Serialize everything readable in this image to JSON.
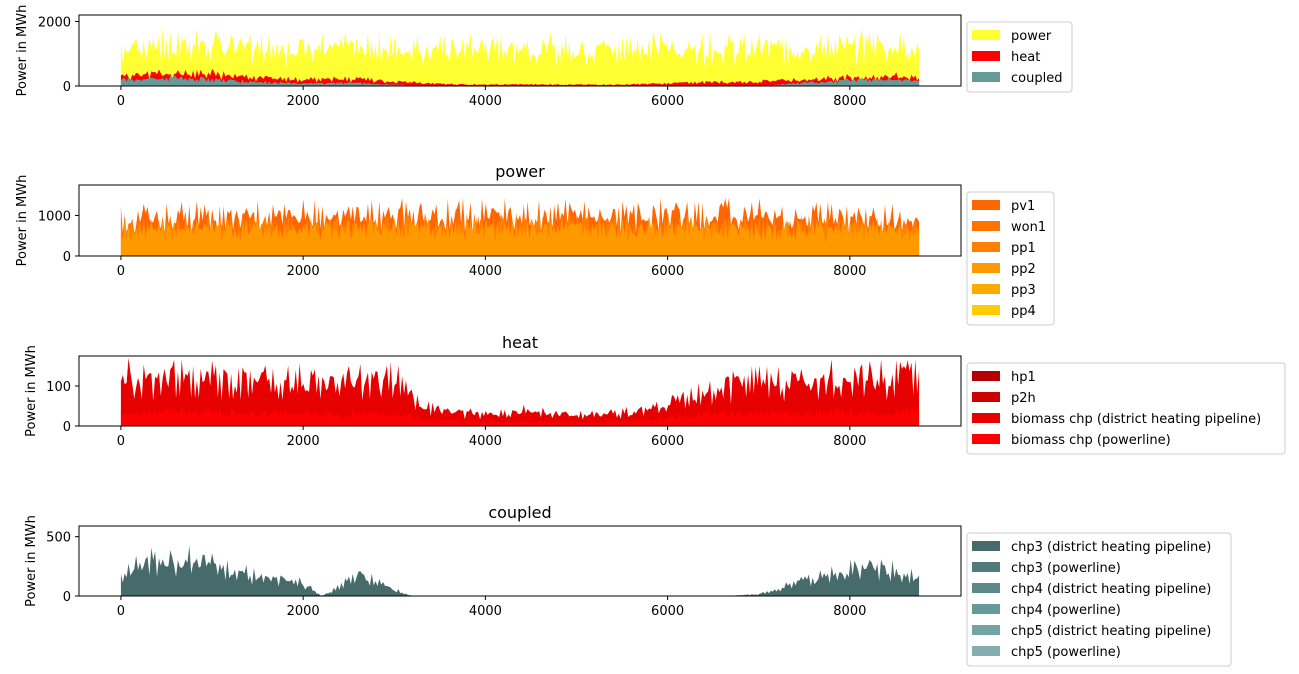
{
  "chart_data": [
    {
      "type": "area",
      "title": "",
      "xlabel": "",
      "ylabel": "Power in MWh",
      "xlim": [
        -460,
        9220
      ],
      "ylim": [
        0,
        2200
      ],
      "xticks": [
        0,
        2000,
        4000,
        6000,
        8000
      ],
      "yticks": [
        0,
        2000
      ],
      "legend_position": "outside-right-top",
      "grid": false,
      "series": [
        {
          "name": "power",
          "color": "#ffff33",
          "x": [
            0,
            500,
            1000,
            1500,
            2000,
            2500,
            3000,
            3500,
            4000,
            4500,
            5000,
            5500,
            6000,
            6500,
            7000,
            7500,
            8000,
            8500,
            8760
          ],
          "values": [
            1750,
            1850,
            1800,
            1750,
            1700,
            1700,
            1650,
            1650,
            1700,
            1700,
            1650,
            1700,
            1750,
            1700,
            1650,
            1700,
            1800,
            1800,
            1600
          ]
        },
        {
          "name": "heat",
          "color": "#ff0000",
          "x": [
            0,
            500,
            1000,
            1500,
            2000,
            2500,
            3000,
            3500,
            4000,
            4500,
            5000,
            5500,
            6000,
            6500,
            7000,
            7500,
            8000,
            8500,
            8760
          ],
          "values": [
            450,
            550,
            550,
            380,
            280,
            320,
            200,
            90,
            60,
            70,
            60,
            60,
            120,
            180,
            200,
            280,
            380,
            430,
            400
          ]
        },
        {
          "name": "coupled",
          "color": "#669999",
          "x": [
            0,
            500,
            1000,
            1500,
            2000,
            2500,
            3000,
            3500,
            4000,
            4500,
            5000,
            5500,
            6000,
            6500,
            7000,
            7500,
            8000,
            8500,
            8760
          ],
          "values": [
            280,
            350,
            300,
            180,
            100,
            150,
            60,
            0,
            0,
            0,
            0,
            0,
            0,
            0,
            10,
            150,
            250,
            300,
            200
          ]
        }
      ]
    },
    {
      "type": "area",
      "title": "power",
      "xlabel": "",
      "ylabel": "Power in MWh",
      "xlim": [
        -460,
        9220
      ],
      "ylim": [
        0,
        1750
      ],
      "xticks": [
        0,
        2000,
        4000,
        6000,
        8000
      ],
      "yticks": [
        0,
        1000
      ],
      "legend_position": "outside-right-top",
      "grid": false,
      "series": [
        {
          "name": "pv1",
          "color": "#ff6600",
          "x": [
            0,
            1000,
            2000,
            3000,
            4000,
            5000,
            6000,
            7000,
            8000,
            8760
          ],
          "values": [
            1300,
            1400,
            1400,
            1450,
            1450,
            1450,
            1450,
            1450,
            1400,
            1250
          ]
        },
        {
          "name": "won1",
          "color": "#ff7300"
        },
        {
          "name": "pp1",
          "color": "#ff8000",
          "x": [
            0,
            1000,
            2000,
            3000,
            4000,
            5000,
            6000,
            7000,
            8000,
            8760
          ],
          "values": [
            1000,
            1050,
            1050,
            1100,
            1100,
            1100,
            1100,
            1050,
            1050,
            950
          ]
        },
        {
          "name": "pp2",
          "color": "#ff9900",
          "x": [
            0,
            1000,
            2000,
            3000,
            4000,
            5000,
            6000,
            7000,
            8000,
            8760
          ],
          "values": [
            900,
            950,
            950,
            950,
            950,
            950,
            950,
            950,
            950,
            900
          ]
        },
        {
          "name": "pp3",
          "color": "#ffaa00"
        },
        {
          "name": "pp4",
          "color": "#ffcc00"
        }
      ]
    },
    {
      "type": "area",
      "title": "heat",
      "xlabel": "",
      "ylabel": "Power in MWh",
      "xlim": [
        -460,
        9220
      ],
      "ylim": [
        0,
        175
      ],
      "xticks": [
        0,
        2000,
        4000,
        6000,
        8000
      ],
      "yticks": [
        0,
        100
      ],
      "legend_position": "outside-right-top",
      "grid": false,
      "series": [
        {
          "name": "hp1",
          "color": "#b30000"
        },
        {
          "name": "p2h",
          "color": "#cc0000"
        },
        {
          "name": "biomass chp (district heating pipeline)",
          "color": "#e60000",
          "x": [
            0,
            500,
            1000,
            1500,
            2000,
            2300,
            2600,
            2900,
            3100,
            3300,
            3600,
            4000,
            4400,
            4800,
            5200,
            5600,
            5800,
            6000,
            6300,
            6600,
            7000,
            7500,
            8000,
            8500,
            8760
          ],
          "values": [
            175,
            175,
            175,
            170,
            165,
            150,
            165,
            170,
            150,
            70,
            55,
            40,
            55,
            45,
            40,
            50,
            60,
            80,
            115,
            150,
            160,
            165,
            170,
            175,
            175
          ]
        },
        {
          "name": "biomass chp (powerline)",
          "color": "#ff0000",
          "x": [
            0,
            500,
            1000,
            1500,
            2000,
            2300,
            2600,
            2900,
            3100,
            3300,
            3600,
            4000,
            4400,
            4800,
            5200,
            5600,
            5800,
            6000,
            6300,
            6600,
            7000,
            7500,
            8000,
            8500,
            8760
          ],
          "values": [
            50,
            50,
            50,
            45,
            45,
            40,
            45,
            45,
            40,
            25,
            20,
            15,
            20,
            15,
            15,
            20,
            20,
            30,
            40,
            45,
            45,
            45,
            50,
            50,
            50
          ]
        }
      ]
    },
    {
      "type": "area",
      "title": "coupled",
      "xlabel": "",
      "ylabel": "Power in MWh",
      "xlim": [
        -460,
        9220
      ],
      "ylim": [
        0,
        590
      ],
      "xticks": [
        0,
        2000,
        4000,
        6000,
        8000
      ],
      "yticks": [
        0,
        500
      ],
      "legend_position": "outside-right-top",
      "grid": false,
      "series": [
        {
          "name": "chp3 (district heating pipeline)",
          "color": "#476b6b",
          "x": [
            0,
            300,
            600,
            900,
            1200,
            1500,
            1800,
            2000,
            2200,
            2400,
            2600,
            2800,
            3000,
            3100,
            3200,
            5700,
            5800,
            6600,
            7000,
            7300,
            7600,
            7900,
            8200,
            8500,
            8760
          ],
          "values": [
            300,
            420,
            400,
            450,
            300,
            250,
            200,
            150,
            0,
            120,
            250,
            180,
            80,
            40,
            0,
            0,
            0,
            0,
            20,
            120,
            200,
            300,
            380,
            300,
            200
          ]
        },
        {
          "name": "chp3 (powerline)",
          "color": "#527a7a"
        },
        {
          "name": "chp4 (district heating pipeline)",
          "color": "#5c8a8a"
        },
        {
          "name": "chp4 (powerline)",
          "color": "#669999"
        },
        {
          "name": "chp5 (district heating pipeline)",
          "color": "#75a3a3"
        },
        {
          "name": "chp5 (powerline)",
          "color": "#85adad"
        }
      ]
    }
  ]
}
